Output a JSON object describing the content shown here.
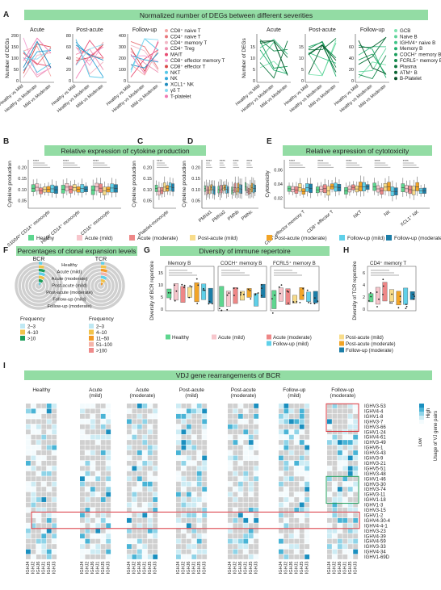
{
  "panels": {
    "A": {
      "letter": "A",
      "title": "Normalized number of DEGs between different severities",
      "ylabel": "Number of DEGs",
      "xticks": [
        "Healthy vs Mild",
        "Healthy vs Moderate",
        "Mild vs Moderate"
      ],
      "subplots": [
        "Acute",
        "Post-acute",
        "Follow-up",
        "Acute",
        "Post-acute",
        "Follow-up"
      ],
      "ticks_left": [
        [
          "0",
          "50",
          "100",
          "150",
          "200"
        ],
        [
          "0",
          "20",
          "40",
          "60",
          "80"
        ],
        [
          "0",
          "100",
          "200",
          "300",
          "400"
        ],
        [
          "0",
          "5",
          "10",
          "15"
        ],
        [
          "0",
          "5",
          "10",
          "15"
        ],
        [
          "0",
          "20",
          "40",
          "60"
        ]
      ],
      "legend_t": [
        "CD8⁺ naive T",
        "CD4⁺ naive T",
        "CD4⁺ memory T",
        "CD4⁺ Treg",
        "MAIT",
        "CD8⁺ effector memory T",
        "CD8⁺ effector T",
        "NKT",
        "NK",
        "XCL1⁺ NK",
        "γδ T",
        "T-platelet"
      ],
      "legend_b": [
        "GCB",
        "Naive B",
        "IGHV4⁺ naive B",
        "Memory B",
        "COCH⁺ memory B",
        "FCRL5⁺ memory B",
        "Plasma",
        "ATM⁺ B",
        "B-Platelet"
      ],
      "colors_t": [
        "#f4a6a6",
        "#e8777b",
        "#f1b8c6",
        "#ee8fb0",
        "#e84c72",
        "#f2a1d2",
        "#d94a4a",
        "#56c8e8",
        "#34a9db",
        "#1f8bbd",
        "#89dcf2",
        "#f07ab2"
      ],
      "colors_b": [
        "#7ee3b0",
        "#5fd39a",
        "#3ec488",
        "#22b06f",
        "#1a9e5c",
        "#148a4c",
        "#0e773e",
        "#0a6432",
        "#064f26"
      ]
    },
    "B": {
      "letter": "B",
      "title": "Relative expression of cytokine production",
      "ylabel": "Cytokine production",
      "yticks": [
        "0.05",
        "0.10",
        "0.15",
        "0.20"
      ],
      "groups": [
        "S100Aʰⁱ CD14⁺ monocyte",
        "HLAʰⁱ CD14⁺ monocyte",
        "CD16⁺ monocyte"
      ]
    },
    "C": {
      "letter": "C",
      "ylabel": "Cytokine production",
      "yticks": [
        "0.05",
        "0.10",
        "0.15",
        "0.20"
      ],
      "groups": [
        "Platelet-monocyte"
      ]
    },
    "D": {
      "letter": "D",
      "ylabel": "Cytokine production",
      "yticks": [
        "0.05",
        "0.10",
        "0.15",
        "0.20"
      ],
      "groups": [
        "PMNa1",
        "PMNa2",
        "PMNb",
        "PMNc"
      ]
    },
    "E": {
      "letter": "E",
      "title": "Relative expression of cytotoxicity",
      "ylabel": "Cytotoxicity",
      "yticks": [
        "0.02",
        "0.04",
        "0.06"
      ],
      "groups": [
        "CD8⁺ effector memory T",
        "CD8⁺ effector T",
        "NKT",
        "NK",
        "XCL1⁺ NK"
      ]
    },
    "F": {
      "letter": "F",
      "title": "Percentages of clonal expansion levels",
      "bcr_label": "BCR",
      "tcr_label": "TCR",
      "ring_labels": [
        "Healthy",
        "Acute (mild)",
        "Acute (moderate)",
        "Post-acute (mild)",
        "Post-acute (moderate)",
        "Follow-up (mild)",
        "Follow-up (moderate)"
      ],
      "legend_title": "Frequency",
      "bcr_legend": [
        "2–3",
        "4–10",
        ">10"
      ],
      "tcr_legend": [
        "2–3",
        "4–10",
        "11–50",
        "51–100",
        ">100"
      ]
    },
    "G": {
      "letter": "G",
      "title": "Diversity of immune repertoire",
      "ylabel": "Diversity of BCR repertoire",
      "yticks": [
        "0",
        "5",
        "10",
        "15"
      ],
      "subplots": [
        "Memory B",
        "COCH⁺ memory B",
        "FCRL5⁺ memory B"
      ]
    },
    "H": {
      "letter": "H",
      "ylabel": "Diversity of TCR repertoire",
      "yticks": [
        "0",
        "2",
        "4",
        "6"
      ],
      "subplots": [
        "CD4⁺ memory T"
      ]
    },
    "I": {
      "letter": "I",
      "title": "VDJ gene rearrangements of BCR",
      "groups": [
        "Healthy",
        "Acute (mild)",
        "Acute (moderate)",
        "Post-acute (mild)",
        "Post-acute (moderate)",
        "Follow-up (mild)",
        "Follow-up (moderate)"
      ],
      "columns": [
        "IGHJ4",
        "IGHJ2",
        "IGHJ6",
        "IGHJ1",
        "IGHJ5",
        "IGHJ3"
      ],
      "rows": [
        "IGHV3-53",
        "IGHV4-4",
        "IGHV1-8",
        "IGHV3-7",
        "IGHV3-66",
        "IGHV1-24",
        "IGHV4-61",
        "IGHV3-49",
        "IGHV6-1",
        "IGHV3-43",
        "IGHV3-9",
        "IGHV3-21",
        "IGHV5-51",
        "IGHV3-48",
        "IGHV1-46",
        "IGHV3-30",
        "IGHV3-74",
        "IGHV3-11",
        "IGHV1-18",
        "IGHV1-3",
        "IGHV3-15",
        "IGHV1-2",
        "IGHV4-30-4",
        "IGHV4-4-1",
        "IGHV3-23",
        "IGHV4-39",
        "IGHV4-59",
        "IGHV3-33",
        "IGHV4-34",
        "IGHV1-69D"
      ],
      "legend_title": "Usage of VJ gene pairs",
      "legend_low": "Low",
      "legend_high": "High"
    }
  },
  "conditions": {
    "labels": [
      "Healthy",
      "Acute (mild)",
      "Acute (moderate)",
      "Post-acute (mild)",
      "Post-acute (moderate)",
      "Follow-up (mild)",
      "Follow-up (moderate)"
    ],
    "colors": [
      "#5ed68f",
      "#f7c6cc",
      "#ee8787",
      "#f8dc8a",
      "#f2a427",
      "#5fd0e9",
      "#1c7ea8"
    ]
  },
  "sig": "****"
}
